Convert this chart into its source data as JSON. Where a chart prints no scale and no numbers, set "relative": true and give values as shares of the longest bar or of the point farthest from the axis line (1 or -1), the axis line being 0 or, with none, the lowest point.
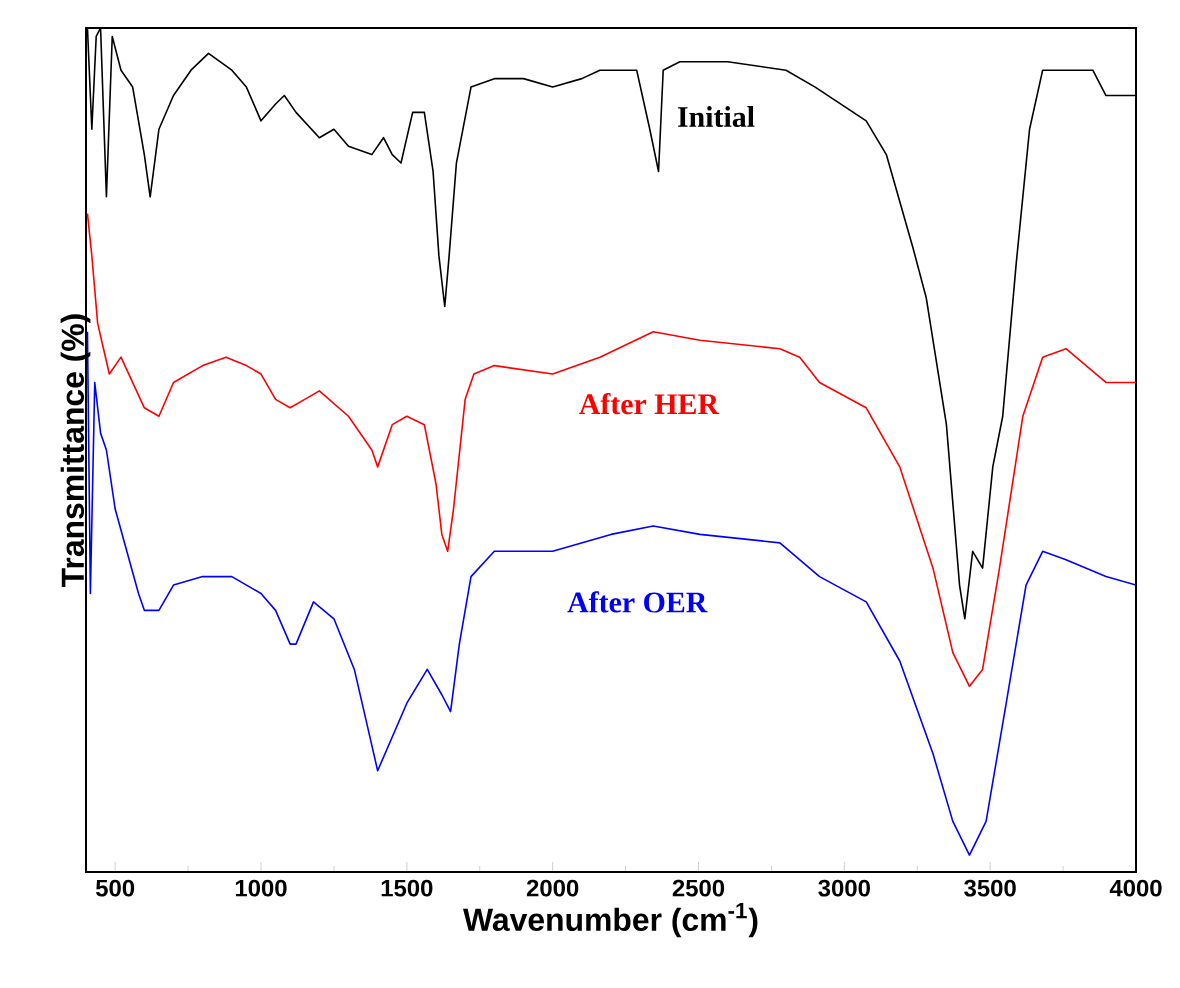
{
  "chart_data": {
    "type": "line",
    "relative": true,
    "xlabel": "Wavenumber (cm$^{-1}$)",
    "ylabel": "Transmittance (%)",
    "xlim": [
      400,
      4000
    ],
    "xticks": [
      500,
      1000,
      1500,
      2000,
      2500,
      3000,
      3500,
      4000
    ],
    "tick_labels": "x",
    "legend": false,
    "grid": false,
    "marker": "none",
    "line_style": "solid",
    "series": [
      {
        "name": "Initial",
        "color": "#000000",
        "x": [
          405,
          420,
          435,
          450,
          470,
          490,
          520,
          560,
          600,
          620,
          650,
          700,
          760,
          820,
          900,
          950,
          1000,
          1050,
          1080,
          1120,
          1200,
          1250,
          1300,
          1380,
          1420,
          1450,
          1480,
          1520,
          1560,
          1590,
          1610,
          1630,
          1645,
          1670,
          1720,
          1800,
          1900,
          2000,
          2100,
          2162,
          2288,
          2333,
          2363,
          2379,
          2436,
          2600,
          2800,
          2900,
          3075,
          3144,
          3235,
          3281,
          3350,
          3395,
          3413,
          3440,
          3474,
          3509,
          3543,
          3589,
          3635,
          3680,
          3760,
          3852,
          3897,
          4000
        ],
        "values": [
          1.0,
          0.88,
          0.99,
          1.0,
          0.8,
          0.99,
          0.95,
          0.93,
          0.85,
          0.8,
          0.88,
          0.92,
          0.95,
          0.97,
          0.95,
          0.93,
          0.89,
          0.91,
          0.92,
          0.9,
          0.87,
          0.88,
          0.86,
          0.85,
          0.87,
          0.85,
          0.84,
          0.9,
          0.9,
          0.83,
          0.73,
          0.67,
          0.73,
          0.84,
          0.93,
          0.94,
          0.94,
          0.93,
          0.94,
          0.95,
          0.95,
          0.88,
          0.83,
          0.95,
          0.96,
          0.96,
          0.95,
          0.93,
          0.89,
          0.85,
          0.74,
          0.68,
          0.53,
          0.34,
          0.3,
          0.38,
          0.36,
          0.48,
          0.54,
          0.72,
          0.88,
          0.95,
          0.95,
          0.95,
          0.92,
          0.92
        ]
      },
      {
        "name": "After HER",
        "color": "#ff0000",
        "x": [
          405,
          420,
          440,
          460,
          480,
          520,
          560,
          600,
          650,
          700,
          800,
          880,
          950,
          1000,
          1050,
          1100,
          1150,
          1200,
          1300,
          1380,
          1400,
          1450,
          1500,
          1560,
          1600,
          1620,
          1640,
          1660,
          1700,
          1730,
          1800,
          2000,
          2162,
          2345,
          2505,
          2779,
          2847,
          2915,
          3075,
          3190,
          3304,
          3372,
          3429,
          3474,
          3532,
          3612,
          3680,
          3760,
          3897,
          4000
        ],
        "values": [
          0.78,
          0.73,
          0.65,
          0.62,
          0.59,
          0.61,
          0.58,
          0.55,
          0.54,
          0.58,
          0.6,
          0.61,
          0.6,
          0.59,
          0.56,
          0.55,
          0.56,
          0.57,
          0.54,
          0.5,
          0.48,
          0.53,
          0.54,
          0.53,
          0.46,
          0.4,
          0.38,
          0.43,
          0.56,
          0.59,
          0.6,
          0.59,
          0.61,
          0.64,
          0.63,
          0.62,
          0.61,
          0.58,
          0.55,
          0.48,
          0.36,
          0.26,
          0.22,
          0.24,
          0.36,
          0.54,
          0.61,
          0.62,
          0.58,
          0.58
        ]
      },
      {
        "name": "After OER",
        "color": "#0000ff",
        "x": [
          405,
          415,
          430,
          450,
          470,
          500,
          540,
          580,
          600,
          650,
          700,
          800,
          900,
          1000,
          1050,
          1100,
          1120,
          1180,
          1250,
          1320,
          1380,
          1400,
          1450,
          1500,
          1570,
          1620,
          1650,
          1680,
          1720,
          1800,
          2000,
          2200,
          2345,
          2505,
          2779,
          2915,
          3075,
          3190,
          3304,
          3372,
          3429,
          3486,
          3555,
          3623,
          3680,
          3760,
          3897,
          4000
        ],
        "values": [
          0.64,
          0.33,
          0.58,
          0.52,
          0.5,
          0.43,
          0.38,
          0.33,
          0.31,
          0.31,
          0.34,
          0.35,
          0.35,
          0.33,
          0.31,
          0.27,
          0.27,
          0.32,
          0.3,
          0.24,
          0.15,
          0.12,
          0.16,
          0.2,
          0.24,
          0.21,
          0.19,
          0.27,
          0.35,
          0.38,
          0.38,
          0.4,
          0.41,
          0.4,
          0.39,
          0.35,
          0.32,
          0.25,
          0.14,
          0.06,
          0.02,
          0.06,
          0.2,
          0.34,
          0.38,
          0.37,
          0.35,
          0.34
        ]
      }
    ]
  }
}
